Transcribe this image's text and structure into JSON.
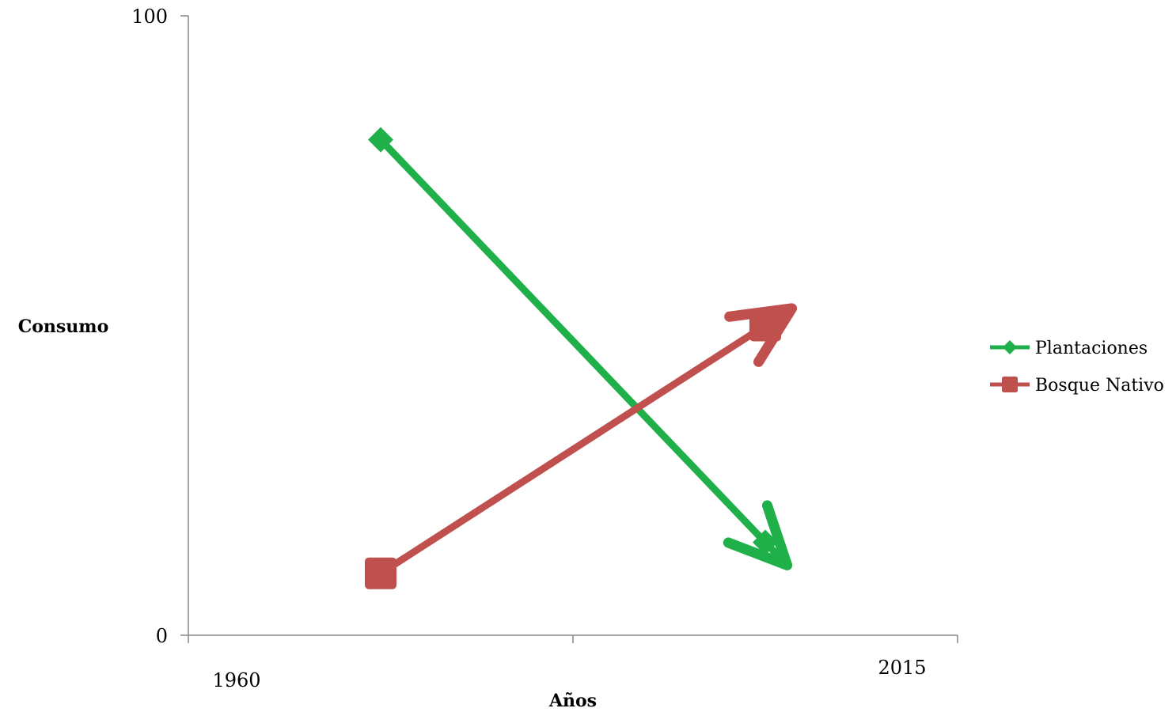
{
  "chart_data": {
    "type": "line",
    "xlabel": "Años",
    "ylabel": "Consumo",
    "y_ticks": [
      "0",
      "100"
    ],
    "x_edge_labels": [
      "1960",
      "2015"
    ],
    "ylim": [
      0,
      100
    ],
    "x": [
      1,
      2
    ],
    "xlim": [
      0.5,
      2.5
    ],
    "grid": false,
    "legend_position": "right",
    "series": [
      {
        "name": "Plantaciones",
        "color": "#1fb04a",
        "marker": "diamond",
        "values": [
          80,
          15
        ]
      },
      {
        "name": "Bosque Nativo",
        "color": "#c0504d",
        "marker": "square",
        "values": [
          10,
          50
        ]
      }
    ]
  }
}
